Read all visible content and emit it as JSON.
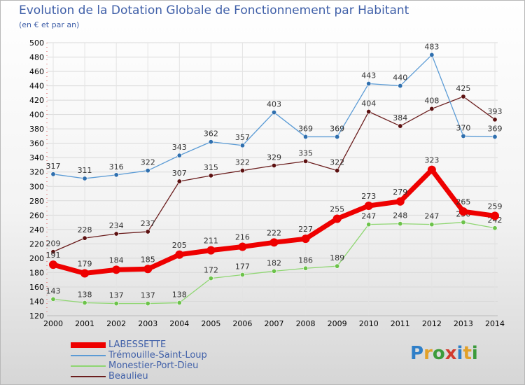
{
  "title": "Evolution de la Dotation Globale de Fonctionnement par Habitant",
  "subtitle": "(en € et par an)",
  "brand": {
    "text": "Proxiti",
    "letters": [
      {
        "ch": "P",
        "color": "#2f7fc8"
      },
      {
        "ch": "r",
        "color": "#e2a12a"
      },
      {
        "ch": "o",
        "color": "#3c9b3c"
      },
      {
        "ch": "x",
        "color": "#d23b2f"
      },
      {
        "ch": "i",
        "color": "#2f7fc8"
      },
      {
        "ch": "t",
        "color": "#e2a12a"
      },
      {
        "ch": "i",
        "color": "#3c9b3c"
      }
    ]
  },
  "chart_data": {
    "type": "line",
    "title": "Evolution de la Dotation Globale de Fonctionnement par Habitant",
    "ylabel": "(en € et par an)",
    "xlabel": "",
    "ylim": [
      120,
      500
    ],
    "ytick_step": 20,
    "grid": true,
    "legend_position": "bottom-left",
    "categories": [
      "2000",
      "2001",
      "2002",
      "2003",
      "2004",
      "2005",
      "2006",
      "2007",
      "2008",
      "2009",
      "2010",
      "2011",
      "2012",
      "2013",
      "2014"
    ],
    "series": [
      {
        "name": "Beaulieu",
        "color": "#6b1e1e",
        "marker": "#5c1010",
        "width": 1.3,
        "radius": 3.2,
        "values": [
          209,
          228,
          234,
          237,
          307,
          315,
          322,
          329,
          335,
          322,
          404,
          384,
          408,
          425,
          393
        ]
      },
      {
        "name": "Trémouille-Saint-Loup",
        "color": "#5b9bd5",
        "marker": "#2f6fae",
        "width": 1.3,
        "radius": 3.2,
        "values": [
          317,
          311,
          316,
          322,
          343,
          362,
          357,
          403,
          369,
          369,
          443,
          440,
          483,
          370,
          369
        ]
      },
      {
        "name": "Monestier-Port-Dieu",
        "color": "#8fd672",
        "marker": "#6cc24a",
        "width": 1.3,
        "radius": 3.2,
        "values": [
          143,
          138,
          137,
          137,
          138,
          172,
          177,
          182,
          186,
          189,
          247,
          248,
          247,
          250,
          242
        ]
      },
      {
        "name": "LABESSETTE",
        "color": "#ee0000",
        "marker": "#ee0000",
        "width": 7,
        "radius": 6,
        "values": [
          191,
          179,
          184,
          185,
          205,
          211,
          216,
          222,
          227,
          255,
          273,
          279,
          323,
          265,
          259
        ]
      }
    ],
    "legend_order": [
      "LABESSETTE",
      "Trémouille-Saint-Loup",
      "Monestier-Port-Dieu",
      "Beaulieu"
    ]
  }
}
